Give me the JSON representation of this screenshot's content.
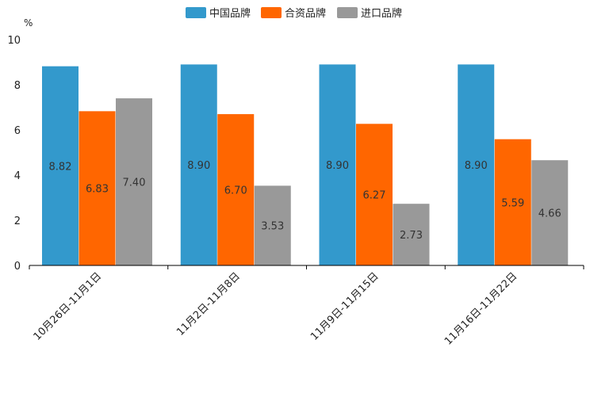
{
  "chart_data": {
    "type": "bar",
    "title": "",
    "unit": "%",
    "xlabel": "",
    "ylabel": "%",
    "ylim": [
      0,
      10
    ],
    "yticks": [
      0,
      2,
      4,
      6,
      8,
      10
    ],
    "grid": false,
    "legend_position": "top-center",
    "categories": [
      "10月26日-11月1日",
      "11月2日-11月8日",
      "11月9日-11月15日",
      "11月16日-11月22日"
    ],
    "series": [
      {
        "name": "中国品牌",
        "color": "#3399CC",
        "values": [
          8.82,
          8.9,
          8.9,
          8.9
        ],
        "labels": [
          "8.82",
          "8.90",
          "8.90",
          "8.90"
        ]
      },
      {
        "name": "合资品牌",
        "color": "#FF6600",
        "values": [
          6.83,
          6.7,
          6.27,
          5.59
        ],
        "labels": [
          "6.83",
          "6.70",
          "6.27",
          "5.59"
        ]
      },
      {
        "name": "进口品牌",
        "color": "#999999",
        "values": [
          7.4,
          3.53,
          2.73,
          4.66
        ],
        "labels": [
          "7.40",
          "3.53",
          "2.73",
          "4.66"
        ]
      }
    ]
  }
}
